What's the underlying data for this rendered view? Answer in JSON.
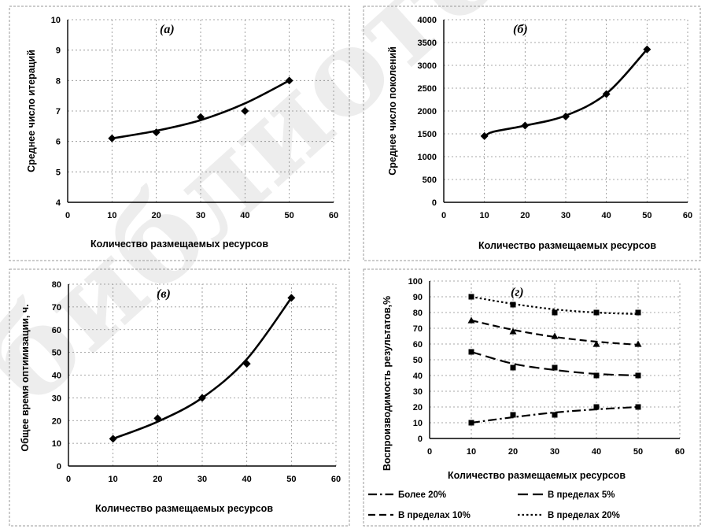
{
  "chart_data": [
    {
      "id": "a",
      "type": "line",
      "panel_label": "(а)",
      "xlabel": "Количество размещаемых ресурсов",
      "ylabel": "Среднее число итераций",
      "xlim": [
        0,
        60
      ],
      "xticks": [
        0,
        10,
        20,
        30,
        40,
        50,
        60
      ],
      "ylim": [
        4,
        10
      ],
      "yticks": [
        4,
        5,
        6,
        7,
        8,
        9,
        10
      ],
      "grid": true,
      "series": [
        {
          "marker": "diamond",
          "line": "solid",
          "x": [
            10,
            20,
            30,
            40,
            50
          ],
          "y": [
            6.1,
            6.3,
            6.8,
            7.0,
            8.0
          ],
          "trend": [
            [
              10,
              6.1
            ],
            [
              20,
              6.35
            ],
            [
              30,
              6.7
            ],
            [
              40,
              7.25
            ],
            [
              50,
              8.0
            ]
          ]
        }
      ]
    },
    {
      "id": "b",
      "type": "line",
      "panel_label": "(б)",
      "xlabel": "Количество размещаемых ресурсов",
      "ylabel": "Среднее число поколений",
      "xlim": [
        0,
        60
      ],
      "xticks": [
        0,
        10,
        20,
        30,
        40,
        50,
        60
      ],
      "ylim": [
        0,
        4000
      ],
      "yticks": [
        0,
        500,
        1000,
        1500,
        2000,
        2500,
        3000,
        3500,
        4000
      ],
      "grid": true,
      "series": [
        {
          "marker": "diamond",
          "line": "solid",
          "x": [
            10,
            20,
            30,
            40,
            50
          ],
          "y": [
            1450,
            1680,
            1880,
            2370,
            3350
          ],
          "trend": [
            [
              10,
              1430
            ],
            [
              12,
              1540
            ],
            [
              20,
              1680
            ],
            [
              30,
              1900
            ],
            [
              40,
              2380
            ],
            [
              50,
              3350
            ]
          ]
        }
      ]
    },
    {
      "id": "v",
      "type": "line",
      "panel_label": "(в)",
      "xlabel": "Количество размещаемых ресурсов",
      "ylabel": "Общее время оптимизации, ч.",
      "xlim": [
        0,
        60
      ],
      "xticks": [
        0,
        10,
        20,
        30,
        40,
        50,
        60
      ],
      "ylim": [
        0,
        80
      ],
      "yticks": [
        0,
        10,
        20,
        30,
        40,
        50,
        60,
        70,
        80
      ],
      "grid": true,
      "series": [
        {
          "marker": "diamond",
          "line": "solid",
          "x": [
            10,
            20,
            30,
            40,
            50
          ],
          "y": [
            12,
            21,
            30,
            45,
            74
          ],
          "trend": [
            [
              10,
              12
            ],
            [
              20,
              19.5
            ],
            [
              30,
              30
            ],
            [
              40,
              47
            ],
            [
              50,
              74
            ]
          ]
        }
      ]
    },
    {
      "id": "g",
      "type": "line",
      "panel_label": "(г)",
      "xlabel": "Количество размещаемых ресурсов",
      "ylabel": "Воспроизводимость результатов,%",
      "xlim": [
        0,
        60
      ],
      "xticks": [
        0,
        10,
        20,
        30,
        40,
        50,
        60
      ],
      "ylim": [
        0,
        100
      ],
      "yticks": [
        0,
        10,
        20,
        30,
        40,
        50,
        60,
        70,
        80,
        90,
        100
      ],
      "grid": true,
      "legend": "bottom",
      "series": [
        {
          "name": "Более 20%",
          "marker": "square",
          "line": "dashdot",
          "x": [
            10,
            20,
            30,
            40,
            50
          ],
          "y": [
            10,
            15,
            15,
            20,
            20
          ],
          "trend": [
            [
              10,
              10
            ],
            [
              20,
              13.5
            ],
            [
              30,
              16.5
            ],
            [
              40,
              18.5
            ],
            [
              50,
              20
            ]
          ]
        },
        {
          "name": "В пределах 5%",
          "marker": "square",
          "line": "longdash",
          "x": [
            10,
            20,
            30,
            40,
            50
          ],
          "y": [
            55,
            45,
            45,
            40,
            40
          ],
          "trend": [
            [
              10,
              55
            ],
            [
              20,
              47.5
            ],
            [
              30,
              43.5
            ],
            [
              40,
              41
            ],
            [
              50,
              40
            ]
          ]
        },
        {
          "name": "В пределах 10%",
          "marker": "triangle",
          "line": "dashed",
          "x": [
            10,
            20,
            30,
            40,
            50
          ],
          "y": [
            75,
            68,
            65,
            60,
            60
          ],
          "trend": [
            [
              10,
              75
            ],
            [
              20,
              69
            ],
            [
              30,
              64.5
            ],
            [
              40,
              61.5
            ],
            [
              50,
              59.5
            ]
          ]
        },
        {
          "name": "В пределах 20%",
          "marker": "square",
          "line": "dotted",
          "x": [
            10,
            20,
            30,
            40,
            50
          ],
          "y": [
            90,
            85,
            80,
            80,
            80
          ],
          "trend": [
            [
              10,
              90
            ],
            [
              20,
              85.5
            ],
            [
              30,
              82
            ],
            [
              40,
              80
            ],
            [
              50,
              79
            ]
          ]
        }
      ]
    }
  ]
}
